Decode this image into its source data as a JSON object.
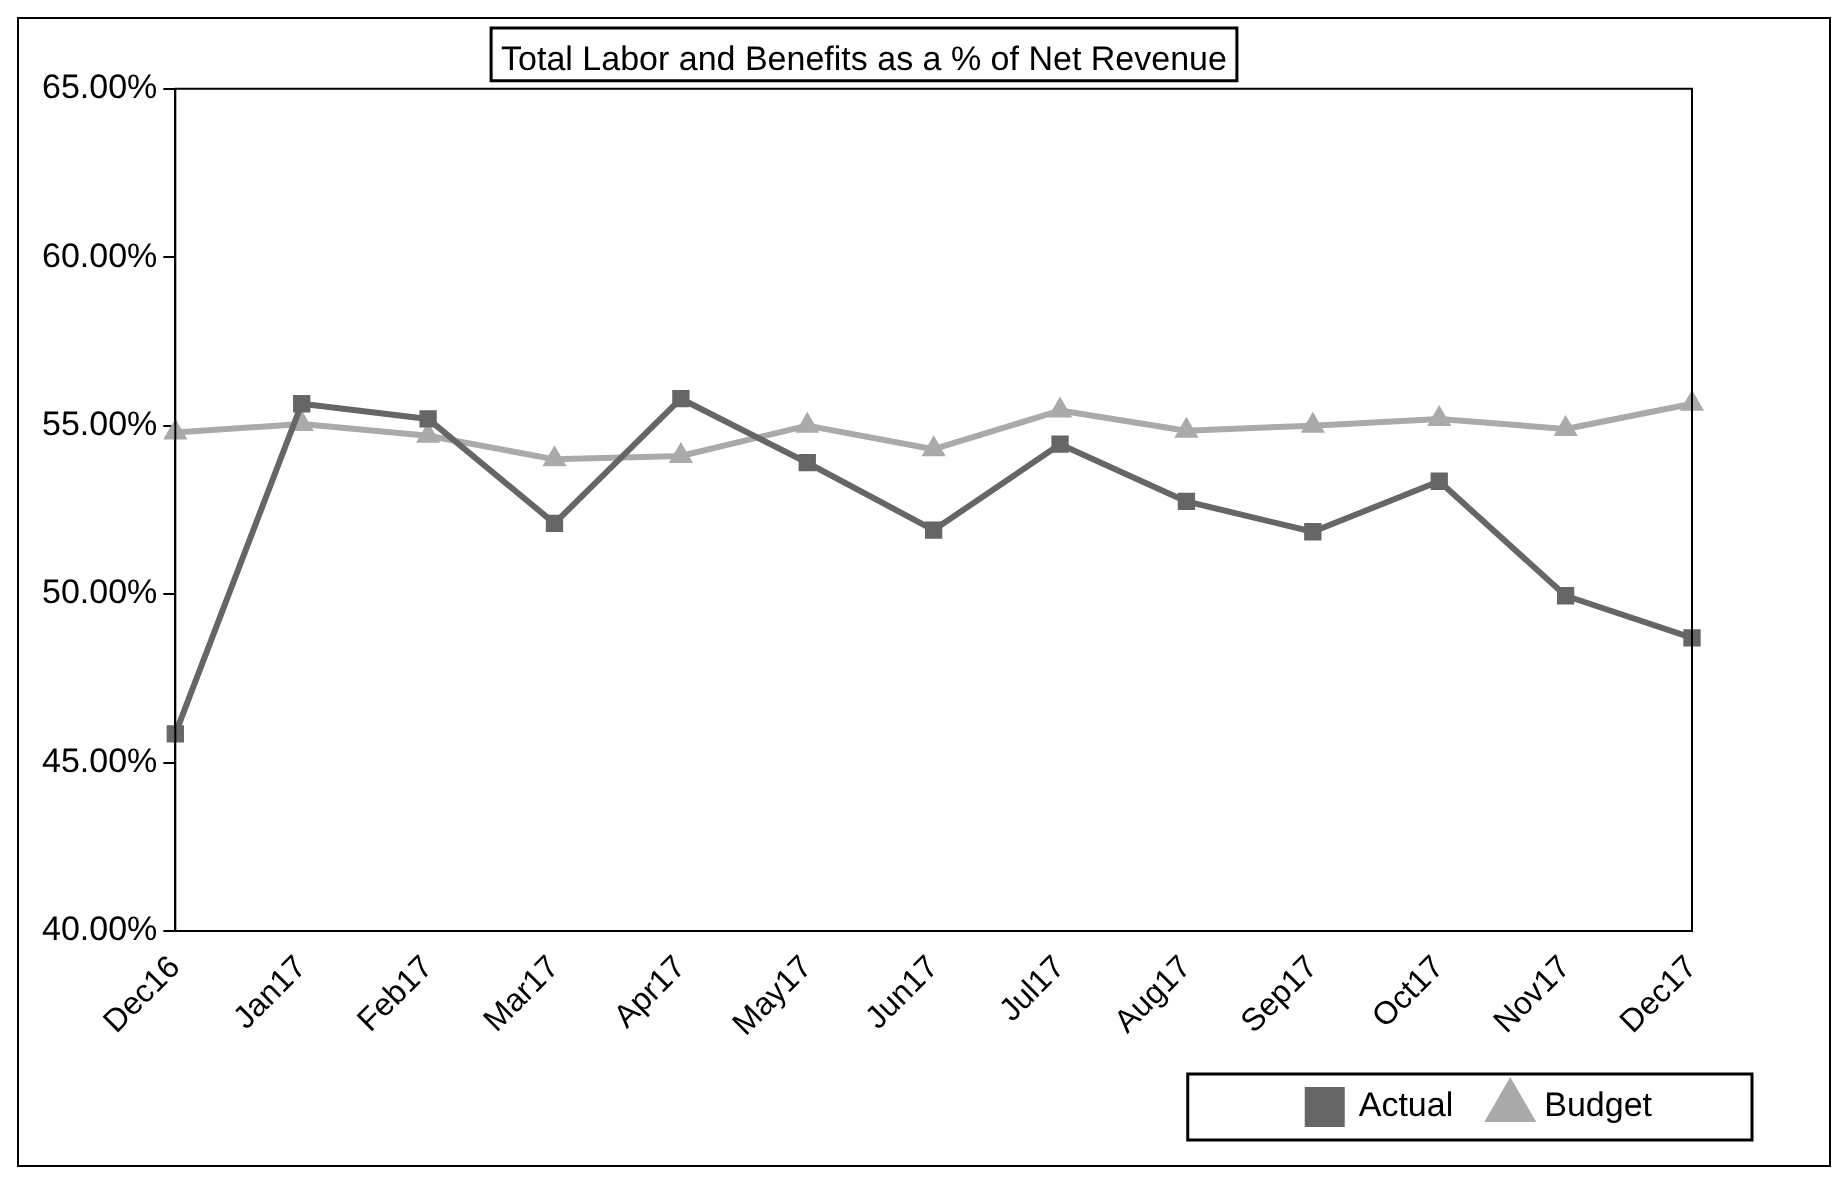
{
  "chart_data": {
    "type": "line",
    "title": "Total Labor and Benefits as a % of Net Revenue",
    "categories": [
      "Dec16",
      "Jan17",
      "Feb17",
      "Mar17",
      "Apr17",
      "May17",
      "Jun17",
      "Jul17",
      "Aug17",
      "Sep17",
      "Oct17",
      "Nov17",
      "Dec17"
    ],
    "series": [
      {
        "name": "Actual",
        "color": "#666666",
        "marker": "square",
        "values": [
          45.85,
          55.65,
          55.2,
          52.1,
          55.8,
          53.9,
          51.9,
          54.45,
          52.75,
          51.85,
          53.35,
          49.95,
          48.7
        ]
      },
      {
        "name": "Budget",
        "color": "#aaaaaa",
        "marker": "triangle",
        "values": [
          54.8,
          55.05,
          54.7,
          54.0,
          54.1,
          55.0,
          54.3,
          55.45,
          54.85,
          55.0,
          55.2,
          54.9,
          55.65
        ]
      }
    ],
    "ylim": [
      40,
      65
    ],
    "yticks": [
      {
        "value": 40,
        "label": "40.00%"
      },
      {
        "value": 45,
        "label": "45.00%"
      },
      {
        "value": 50,
        "label": "50.00%"
      },
      {
        "value": 55,
        "label": "55.00%"
      },
      {
        "value": 60,
        "label": "60.00%"
      },
      {
        "value": 65,
        "label": "65.00%"
      }
    ],
    "legend": "bottom right"
  }
}
